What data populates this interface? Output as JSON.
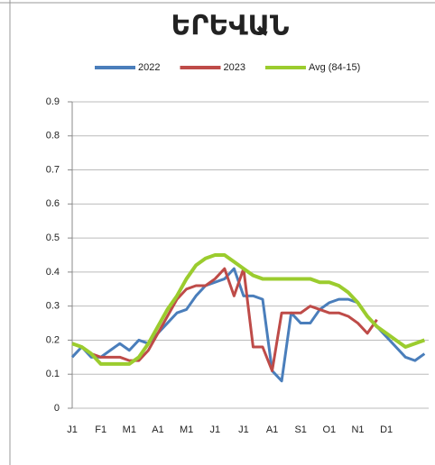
{
  "chart_data": {
    "type": "line",
    "title": "ԵՐԵՎԱՆ",
    "categories": [
      "J1",
      null,
      null,
      "F1",
      null,
      null,
      "M1",
      null,
      null,
      "A1",
      null,
      null,
      "M1",
      null,
      null,
      "J1",
      null,
      null,
      "J1",
      null,
      null,
      "A1",
      null,
      null,
      "S1",
      null,
      null,
      "O1",
      null,
      null,
      "N1",
      null,
      null,
      "D1",
      null,
      null,
      null,
      null
    ],
    "series": [
      {
        "name": "2022",
        "color": "#4a7ebb",
        "values": [
          0.15,
          0.18,
          0.15,
          0.15,
          0.17,
          0.19,
          0.17,
          0.2,
          0.19,
          0.22,
          0.25,
          0.28,
          0.29,
          0.33,
          0.36,
          0.37,
          0.38,
          0.41,
          0.33,
          0.33,
          0.32,
          0.11,
          0.08,
          0.28,
          0.25,
          0.25,
          0.29,
          0.31,
          0.32,
          0.32,
          0.31,
          0.27,
          0.24,
          0.21,
          0.18,
          0.15,
          0.14,
          0.16
        ]
      },
      {
        "name": "2023",
        "color": "#be4b48",
        "values": [
          0.19,
          0.18,
          0.16,
          0.15,
          0.15,
          0.15,
          0.14,
          0.14,
          0.17,
          0.22,
          0.27,
          0.32,
          0.35,
          0.36,
          0.36,
          0.38,
          0.41,
          0.33,
          0.41,
          0.18,
          0.18,
          0.11,
          0.28,
          0.28,
          0.28,
          0.3,
          0.29,
          0.28,
          0.28,
          0.27,
          0.25,
          0.22,
          0.26,
          null,
          null,
          null,
          null,
          null
        ]
      },
      {
        "name": "Avg (84-15)",
        "color": "#9bcc2e",
        "values": [
          0.19,
          0.18,
          0.16,
          0.13,
          0.13,
          0.13,
          0.13,
          0.15,
          0.19,
          0.24,
          0.29,
          0.33,
          0.38,
          0.42,
          0.44,
          0.45,
          0.45,
          0.43,
          0.41,
          0.39,
          0.38,
          0.38,
          0.38,
          0.38,
          0.38,
          0.38,
          0.37,
          0.37,
          0.36,
          0.34,
          0.31,
          0.27,
          0.24,
          0.22,
          0.2,
          0.18,
          0.19,
          0.2
        ]
      }
    ],
    "ylim": [
      0,
      0.9
    ],
    "yticks": [
      0,
      0.1,
      0.2,
      0.3,
      0.4,
      0.5,
      0.6,
      0.7,
      0.8,
      0.9
    ],
    "grid": true,
    "legend": "top"
  }
}
